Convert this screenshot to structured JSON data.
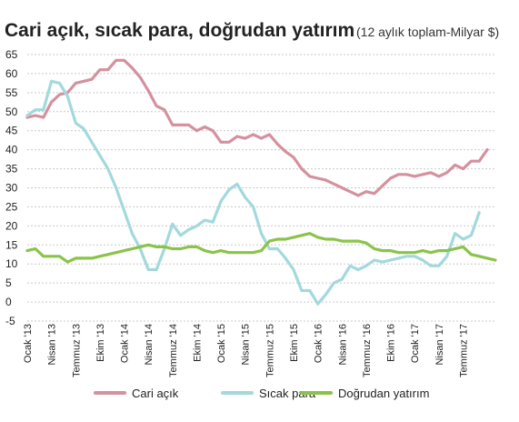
{
  "chart_data": {
    "type": "line",
    "title": "Cari açık, sıcak para, doğrudan yatırım",
    "subtitle": "(12 aylık toplam-Milyar $)",
    "ylim": [
      -5,
      65
    ],
    "yticks": [
      -5,
      0,
      5,
      10,
      15,
      20,
      25,
      30,
      35,
      40,
      45,
      50,
      55,
      60,
      65
    ],
    "grid": true,
    "legend_position": "bottom",
    "x_tick_labels": [
      {
        "label": "Ocak '13",
        "x": 0
      },
      {
        "label": "Nisan '13",
        "x": 3
      },
      {
        "label": "Temmuz '13",
        "x": 6
      },
      {
        "label": "Ekim '13",
        "x": 9
      },
      {
        "label": "Ocak '14",
        "x": 12
      },
      {
        "label": "Nisan '14",
        "x": 15
      },
      {
        "label": "Temmuz '14",
        "x": 18
      },
      {
        "label": "Ekim '14",
        "x": 21
      },
      {
        "label": "Ocak '15",
        "x": 24
      },
      {
        "label": "Nisan '15",
        "x": 27
      },
      {
        "label": "Temmuz '15",
        "x": 30
      },
      {
        "label": "Ekim '15",
        "x": 33
      },
      {
        "label": "Ocak '16",
        "x": 36
      },
      {
        "label": "Nisan '16",
        "x": 39
      },
      {
        "label": "Temmuz '16",
        "x": 42
      },
      {
        "label": "Ekim '16",
        "x": 45
      },
      {
        "label": "Ocak '17",
        "x": 48
      },
      {
        "label": "Nisan '17",
        "x": 51
      },
      {
        "label": "Temmuz '17",
        "x": 54
      }
    ],
    "series": [
      {
        "name": "Cari açık",
        "color": "#d4919f",
        "values": [
          48.5,
          49,
          48.5,
          52.5,
          54.5,
          55,
          57.5,
          58,
          58.5,
          61,
          61,
          63.5,
          63.5,
          61.5,
          59,
          55.5,
          51.5,
          50.5,
          46.5,
          46.5,
          46.5,
          45,
          46,
          45,
          42,
          42,
          43.5,
          43,
          44,
          43,
          44,
          41.5,
          39.5,
          38,
          35,
          33,
          32.5,
          32,
          31,
          30,
          29,
          28,
          29,
          28.5,
          30.5,
          32.5,
          33.5,
          33.5,
          33,
          33.5,
          34,
          33,
          34,
          36,
          35,
          37,
          37,
          40
        ]
      },
      {
        "name": "Sıcak para",
        "color": "#a3d9dc",
        "values": [
          49,
          50.5,
          50.5,
          58,
          57.5,
          54,
          47,
          45.5,
          42,
          38.5,
          35,
          30,
          24,
          18,
          14,
          8.5,
          8.5,
          14,
          20.5,
          17.5,
          19,
          20,
          21.5,
          21,
          26.5,
          29.5,
          31,
          27.5,
          25,
          18,
          14,
          14,
          11.5,
          8.5,
          3,
          3,
          -0.5,
          2,
          5,
          6,
          9.5,
          8.5,
          9.5,
          11,
          10.5,
          11,
          11.5,
          12,
          12,
          11,
          9.5,
          9.5,
          12,
          18,
          16.5,
          17.5,
          23.5
        ]
      },
      {
        "name": "Doğrudan yatırım",
        "color": "#8bc34a",
        "values": [
          13.5,
          14,
          12,
          12,
          12,
          10.5,
          11.5,
          11.5,
          11.5,
          12,
          12.5,
          13,
          13.5,
          14,
          14.5,
          15,
          14.5,
          14.5,
          14,
          14,
          14.5,
          14.5,
          13.5,
          13,
          13.5,
          13,
          13,
          13,
          13,
          13.5,
          16,
          16.5,
          16.5,
          17,
          17.5,
          18,
          17,
          16.5,
          16.5,
          16,
          16,
          16,
          15.5,
          14,
          13.5,
          13.5,
          13,
          13,
          13,
          13.5,
          13,
          13.5,
          13.5,
          14,
          14.5,
          12.5,
          12,
          11.5,
          11
        ]
      }
    ]
  }
}
